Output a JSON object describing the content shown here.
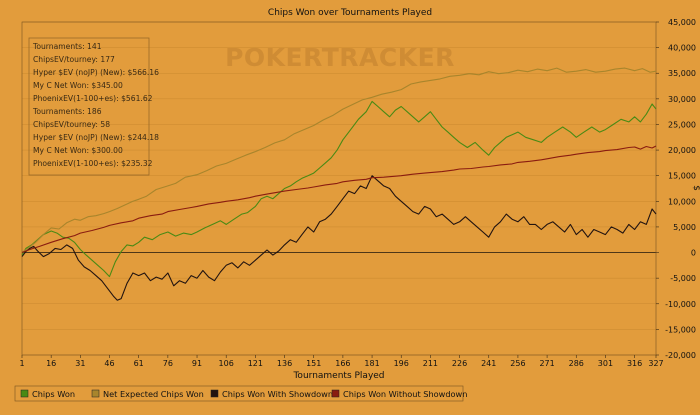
{
  "chart_data": {
    "type": "line",
    "title": "Chips Won over Tournaments Played",
    "xlabel": "Tournaments Played",
    "ylabel": "$",
    "xlim": [
      1,
      327
    ],
    "ylim": [
      -20000,
      45000
    ],
    "x_ticks": [
      1,
      16,
      31,
      46,
      61,
      76,
      91,
      106,
      121,
      136,
      151,
      166,
      181,
      196,
      211,
      226,
      241,
      256,
      271,
      286,
      301,
      316,
      327
    ],
    "y_ticks": [
      -20000,
      -15000,
      -10000,
      -5000,
      0,
      5000,
      10000,
      15000,
      20000,
      25000,
      30000,
      35000,
      40000,
      45000
    ],
    "y_tick_labels": [
      "-20,000",
      "-15,000",
      "-10,000",
      "-5,000",
      "0",
      "5,000",
      "10,000",
      "15,000",
      "20,000",
      "25,000",
      "30,000",
      "35,000",
      "40,000",
      "45,000"
    ],
    "watermark": "POKERTRACKER",
    "stats_box": [
      "Tournaments: 141",
      "ChipsEV/tourney: 177",
      "Hyper $EV (noJP) (New): $566.16",
      "My C Net Won: $345.00",
      "PhoenixEV(1-100+es): $561.62",
      "Tournaments: 186",
      "ChipsEV/tourney: 58",
      "Hyper $EV (noJP) (New): $244.18",
      "My C Net Won: $300.00",
      "PhoenixEV(1-100+es): $235.32"
    ],
    "legend_position": "bottom",
    "series": [
      {
        "name": "Chips Won",
        "color": "#4a8a14",
        "x": [
          1,
          3,
          6,
          9,
          12,
          16,
          19,
          22,
          25,
          28,
          31,
          34,
          37,
          40,
          43,
          46,
          49,
          52,
          55,
          58,
          61,
          64,
          68,
          72,
          76,
          80,
          84,
          88,
          91,
          95,
          99,
          103,
          106,
          110,
          114,
          117,
          121,
          124,
          127,
          130,
          133,
          136,
          139,
          142,
          145,
          148,
          151,
          154,
          157,
          160,
          163,
          166,
          170,
          174,
          178,
          181,
          184,
          187,
          190,
          193,
          196,
          199,
          202,
          205,
          208,
          211,
          214,
          217,
          220,
          223,
          226,
          230,
          234,
          238,
          241,
          244,
          247,
          250,
          253,
          256,
          260,
          264,
          268,
          271,
          275,
          279,
          283,
          286,
          290,
          294,
          298,
          301,
          305,
          309,
          313,
          316,
          319,
          322,
          325,
          327
        ],
        "y": [
          -500,
          800,
          1500,
          2500,
          3500,
          4200,
          3800,
          3000,
          2800,
          2000,
          600,
          -500,
          -1500,
          -2500,
          -3500,
          -4700,
          -1800,
          200,
          1500,
          1300,
          2000,
          3000,
          2500,
          3500,
          4000,
          3200,
          3800,
          3500,
          4000,
          4800,
          5500,
          6200,
          5500,
          6500,
          7500,
          7800,
          9000,
          10500,
          11000,
          10500,
          11500,
          12500,
          13000,
          13800,
          14500,
          15000,
          15500,
          16500,
          17500,
          18500,
          20000,
          22000,
          24000,
          26000,
          27500,
          29500,
          28500,
          27500,
          26500,
          27800,
          28500,
          27500,
          26500,
          25500,
          26500,
          27500,
          26000,
          24500,
          23500,
          22500,
          21500,
          20500,
          21500,
          20000,
          19000,
          20500,
          21500,
          22500,
          23000,
          23500,
          22500,
          22000,
          21500,
          22500,
          23500,
          24500,
          23500,
          22500,
          23500,
          24500,
          23500,
          24000,
          25000,
          26000,
          25500,
          26500,
          25500,
          27000,
          29000,
          28000
        ]
      },
      {
        "name": "Net Expected Chips Won",
        "color": "#a8852c",
        "x": [
          1,
          4,
          8,
          12,
          16,
          20,
          24,
          28,
          31,
          35,
          39,
          43,
          46,
          50,
          54,
          58,
          61,
          65,
          70,
          75,
          80,
          85,
          91,
          96,
          101,
          106,
          111,
          116,
          121,
          126,
          131,
          136,
          141,
          146,
          151,
          156,
          161,
          166,
          171,
          176,
          181,
          186,
          191,
          196,
          201,
          206,
          211,
          216,
          221,
          226,
          231,
          236,
          241,
          246,
          251,
          256,
          261,
          266,
          271,
          276,
          281,
          286,
          291,
          296,
          301,
          306,
          311,
          316,
          320,
          324,
          327
        ],
        "y": [
          0,
          800,
          2000,
          3500,
          4800,
          4600,
          5800,
          6500,
          6300,
          7000,
          7200,
          7600,
          8000,
          8600,
          9300,
          10000,
          10400,
          11000,
          12300,
          12900,
          13500,
          14700,
          15200,
          16000,
          16900,
          17400,
          18200,
          19000,
          19700,
          20500,
          21400,
          22000,
          23200,
          24000,
          24800,
          25900,
          26800,
          28000,
          28900,
          29800,
          30300,
          30900,
          31300,
          31800,
          32900,
          33300,
          33600,
          33900,
          34400,
          34600,
          34900,
          34700,
          35300,
          34900,
          35100,
          35600,
          35300,
          35800,
          35500,
          36000,
          35200,
          35400,
          35700,
          35200,
          35400,
          35800,
          36000,
          35500,
          35900,
          35200,
          35400
        ]
      },
      {
        "name": "Chips Won With Showdown",
        "color": "#231410",
        "x": [
          1,
          3,
          5,
          7,
          9,
          12,
          15,
          18,
          21,
          24,
          27,
          30,
          33,
          36,
          39,
          42,
          45,
          48,
          50,
          52,
          55,
          58,
          61,
          64,
          67,
          70,
          73,
          76,
          79,
          82,
          85,
          88,
          91,
          94,
          97,
          100,
          103,
          106,
          109,
          112,
          115,
          118,
          121,
          124,
          127,
          130,
          133,
          136,
          139,
          142,
          145,
          148,
          151,
          154,
          157,
          160,
          163,
          166,
          169,
          172,
          175,
          178,
          181,
          184,
          187,
          190,
          193,
          196,
          199,
          202,
          205,
          208,
          211,
          214,
          217,
          220,
          223,
          226,
          229,
          232,
          235,
          238,
          241,
          244,
          247,
          250,
          253,
          256,
          259,
          262,
          265,
          268,
          271,
          274,
          277,
          280,
          283,
          286,
          289,
          292,
          295,
          298,
          301,
          304,
          307,
          310,
          313,
          316,
          319,
          322,
          325,
          327
        ],
        "y": [
          -800,
          200,
          800,
          1200,
          300,
          -800,
          -200,
          800,
          600,
          1500,
          800,
          -1500,
          -2800,
          -3500,
          -4500,
          -5500,
          -7000,
          -8500,
          -9300,
          -9000,
          -6000,
          -4000,
          -4500,
          -4000,
          -5500,
          -4800,
          -5200,
          -4000,
          -6500,
          -5500,
          -6000,
          -4500,
          -5000,
          -3500,
          -4800,
          -5500,
          -3800,
          -2500,
          -2000,
          -3000,
          -1800,
          -2500,
          -1500,
          -500,
          500,
          -500,
          300,
          1500,
          2500,
          2000,
          3500,
          5000,
          4000,
          6000,
          6500,
          7500,
          9000,
          10500,
          12000,
          11500,
          13000,
          12500,
          15000,
          14000,
          13000,
          12500,
          11000,
          10000,
          9000,
          8000,
          7500,
          9000,
          8500,
          7000,
          7500,
          6500,
          5500,
          6000,
          7000,
          6000,
          5000,
          4000,
          3000,
          5000,
          6000,
          7500,
          6500,
          6000,
          7000,
          5500,
          5500,
          4500,
          5500,
          6000,
          5000,
          4000,
          5500,
          3500,
          4500,
          3000,
          4500,
          4000,
          3500,
          5000,
          4500,
          3800,
          5500,
          4500,
          6000,
          5500,
          8500,
          7500
        ]
      },
      {
        "name": "Chips Won Without Showdown",
        "color": "#8a1c10",
        "x": [
          1,
          5,
          10,
          16,
          22,
          28,
          31,
          37,
          43,
          46,
          52,
          58,
          61,
          67,
          73,
          76,
          82,
          88,
          91,
          97,
          103,
          106,
          112,
          118,
          121,
          127,
          133,
          136,
          142,
          148,
          151,
          157,
          163,
          166,
          172,
          178,
          181,
          187,
          193,
          196,
          202,
          208,
          211,
          217,
          223,
          226,
          232,
          238,
          241,
          247,
          253,
          256,
          262,
          268,
          271,
          277,
          283,
          286,
          292,
          298,
          301,
          307,
          313,
          316,
          319,
          322,
          325,
          327
        ],
        "y": [
          0,
          600,
          1200,
          2000,
          2700,
          3300,
          3800,
          4300,
          4900,
          5300,
          5800,
          6200,
          6700,
          7200,
          7500,
          8000,
          8400,
          8800,
          9000,
          9500,
          9800,
          10000,
          10300,
          10700,
          11000,
          11400,
          11800,
          12000,
          12300,
          12600,
          12800,
          13200,
          13500,
          13800,
          14100,
          14300,
          14600,
          14700,
          14900,
          15000,
          15300,
          15500,
          15600,
          15800,
          16100,
          16300,
          16400,
          16700,
          16800,
          17100,
          17300,
          17600,
          17800,
          18100,
          18300,
          18700,
          19000,
          19200,
          19500,
          19700,
          19900,
          20100,
          20500,
          20600,
          20200,
          20700,
          20400,
          20800
        ]
      }
    ]
  }
}
